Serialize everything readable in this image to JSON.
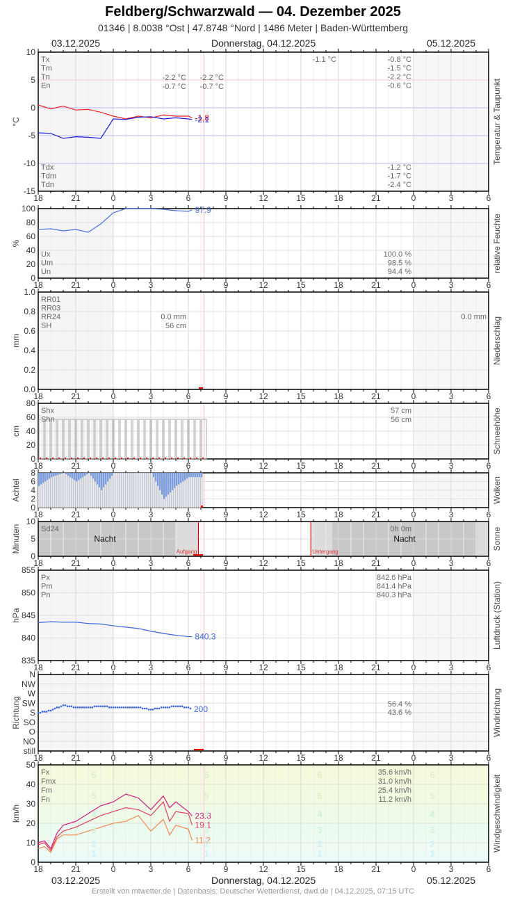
{
  "header": {
    "title": "Feldberg/Schwarzwald  —  04. Dezember 2025",
    "subtitle": "01346  |  8.0038 °Ost  |  47.8748 °Nord  |  1486 Meter  |  Baden-Württemberg",
    "date_left": "03.12.2025",
    "date_center": "Donnerstag, 04.12.2025",
    "date_right": "05.12.2025"
  },
  "footer": {
    "credit": "Erstellt von mtwetter.de | Datenbasis: Deutscher Wetterdienst, dwd.de | 04.12.2025, 07:15 UTC"
  },
  "x_axis": {
    "tick_labels": [
      "18",
      "21",
      "0",
      "3",
      "6",
      "9",
      "12",
      "15",
      "18",
      "21",
      "0",
      "3",
      "6"
    ]
  },
  "colors": {
    "temp": "#ee2222",
    "dewpoint": "#1a1ad8",
    "humidity": "#4a72e0",
    "pressure": "#3b66dd",
    "wind_dir": "#3b66dd",
    "fx": "#cc1a7a",
    "fm": "#e0405a",
    "fn": "#f08a50",
    "marker": "#ff0000",
    "night": "#c8c8c8"
  },
  "chart_data": [
    {
      "type": "line",
      "title": "Temperatur & Taupunkt",
      "ylabel": "°C",
      "ylim": [
        -15,
        10
      ],
      "yticks": [
        "10",
        "5",
        "0",
        "-5",
        "-10",
        "-15"
      ],
      "x": [
        "18",
        "19",
        "20",
        "21",
        "22",
        "23",
        "0",
        "1",
        "2",
        "3",
        "4",
        "5",
        "6",
        "6.3"
      ],
      "series": [
        {
          "name": "Temperatur",
          "values": [
            0.5,
            -0.2,
            0.3,
            -0.4,
            -0.3,
            -0.8,
            -1.5,
            -2.0,
            -1.5,
            -1.8,
            -1.3,
            -1.5,
            -1.5,
            -1.8
          ],
          "last_label": "-1.8"
        },
        {
          "name": "Taupunkt",
          "values": [
            -4.5,
            -4.6,
            -5.5,
            -5.2,
            -5.3,
            -5.5,
            -2.0,
            -2.1,
            -1.7,
            -1.6,
            -2.0,
            -1.8,
            -2.0,
            -2.1
          ],
          "last_label": "-2.1"
        }
      ],
      "legend_top": [
        "Tx",
        "Tm",
        "Tn",
        "En"
      ],
      "legend_bottom": [
        "Tdx",
        "Tdm",
        "Tdn"
      ],
      "col_a": {
        "Tn": "-2.2 °C",
        "En": "-0.7 °C"
      },
      "col_b": {
        "Tn": "-2.2 °C",
        "En": "-0.7 °C"
      },
      "col_c": {
        "Tx": "-1.1 °C"
      },
      "col_d": {
        "Tx": "-0.8 °C",
        "Tm": "-1.5 °C",
        "Tn": "-2.2 °C",
        "En": "-0.6 °C",
        "Tdx": "-1.2 °C",
        "Tdm": "-1.7 °C",
        "Tdn": "-2.4 °C"
      }
    },
    {
      "type": "line",
      "title": "relative Feuchte",
      "ylabel": "%",
      "ylim": [
        0,
        100
      ],
      "yticks": [
        "100",
        "80",
        "60",
        "40",
        "20",
        "0"
      ],
      "x": [
        "18",
        "19",
        "20",
        "21",
        "22",
        "23",
        "0",
        "1",
        "2",
        "3",
        "4",
        "5",
        "6",
        "6.3"
      ],
      "series": [
        {
          "name": "Feuchte",
          "values": [
            70,
            71,
            68,
            70,
            66,
            78,
            94,
            100,
            100,
            100,
            99,
            97,
            96,
            97.9
          ],
          "last_label": "97.9"
        }
      ],
      "legend": [
        "Ux",
        "Um",
        "Un"
      ],
      "values": {
        "Ux": "100.0 %",
        "Um": "98.5 %",
        "Un": "94.4 %"
      }
    },
    {
      "type": "bar",
      "title": "Niederschlag",
      "ylabel": "mm",
      "ylim": [
        0,
        1.0
      ],
      "yticks": [
        "1.0",
        "0.8",
        "0.6",
        "0.4",
        "0.2",
        "0.0"
      ],
      "legend": [
        "RR01",
        "RR03",
        "RR24",
        "SH"
      ],
      "values": {
        "RR24": "0.0 mm",
        "SH": "56 cm"
      },
      "right_value": "0.0 mm"
    },
    {
      "type": "bar",
      "title": "Schneehöhe",
      "ylabel": "cm",
      "ylim": [
        0,
        80
      ],
      "yticks": [
        "80",
        "60",
        "40",
        "20",
        "0"
      ],
      "bar_value": 57,
      "legend": [
        "Shx",
        "Shn"
      ],
      "values": {
        "Shx": "57 cm",
        "Shn": "56 cm"
      }
    },
    {
      "type": "bar",
      "title": "Wolken",
      "ylabel": "Achtel",
      "ylim": [
        0,
        8
      ],
      "yticks": [
        "8",
        "6",
        "4",
        "2",
        "0"
      ],
      "x": [
        "18",
        "19",
        "20",
        "21",
        "22",
        "23",
        "0",
        "1",
        "2",
        "3",
        "4",
        "5",
        "6",
        "6.5"
      ],
      "values": [
        5,
        7,
        8,
        6,
        8,
        4,
        8,
        8,
        8,
        8,
        2,
        5,
        7,
        7
      ]
    },
    {
      "type": "area",
      "title": "Sonne",
      "ylabel": "Minuten",
      "ylim": [
        0,
        10
      ],
      "yticks": [
        "10",
        "5",
        "0"
      ],
      "legend": [
        "Sd24"
      ],
      "sd24_value": "0h 0m",
      "night_label": "Nacht",
      "sunrise_label": "Aufgang",
      "sunset_label": "Untergang",
      "sunrise_hour": 6.8,
      "sunset_hour": 15.8
    },
    {
      "type": "line",
      "title": "Luftdruck (Station)",
      "ylabel": "hPa",
      "ylim": [
        835,
        855
      ],
      "yticks": [
        "855",
        "850",
        "845",
        "840",
        "835"
      ],
      "x": [
        "18",
        "19",
        "20",
        "21",
        "22",
        "23",
        "0",
        "1",
        "2",
        "3",
        "4",
        "5",
        "6",
        "6.3"
      ],
      "series": [
        {
          "name": "Luftdruck",
          "values": [
            843.4,
            843.6,
            843.5,
            843.5,
            843.2,
            843.1,
            842.7,
            842.4,
            842.1,
            841.5,
            841.0,
            840.6,
            840.3,
            840.3
          ],
          "last_label": "840.3"
        }
      ],
      "legend": [
        "Px",
        "Pm",
        "Pn"
      ],
      "values": {
        "Px": "842.6 hPa",
        "Pm": "841.4 hPa",
        "Pn": "840.3 hPa"
      }
    },
    {
      "type": "scatter",
      "title": "Windrichtung",
      "ylabel": "Richtung",
      "yticks": [
        "N",
        "NW",
        "W",
        "SW",
        "S",
        "SO",
        "O",
        "NO",
        "still"
      ],
      "x": [
        "18",
        "19",
        "20",
        "21",
        "22",
        "23",
        "0",
        "1",
        "2",
        "3",
        "4",
        "5",
        "6",
        "6.3"
      ],
      "series": [
        {
          "name": "Richtung",
          "values": [
            180,
            190,
            215,
            205,
            205,
            210,
            205,
            205,
            205,
            195,
            205,
            210,
            205,
            200
          ],
          "last_label": "200"
        }
      ],
      "values": [
        "56.4 %",
        "43.6 %"
      ]
    },
    {
      "type": "line",
      "title": "Windgeschwindigkeit",
      "ylabel": "km/h",
      "ylim": [
        0,
        50
      ],
      "yticks": [
        "50",
        "40",
        "30",
        "20",
        "10",
        "0"
      ],
      "x": [
        "18",
        "18.5",
        "19",
        "19.5",
        "20",
        "21",
        "22",
        "23",
        "0",
        "1",
        "2",
        "3",
        "4",
        "4.5",
        "5",
        "6",
        "6.3"
      ],
      "series": [
        {
          "name": "Fx",
          "values": [
            10,
            11,
            7,
            15,
            19,
            21,
            25,
            29,
            31,
            35,
            33,
            27,
            34,
            28,
            31,
            26,
            23.8
          ],
          "last_label": "23.8"
        },
        {
          "name": "Fm",
          "values": [
            9,
            10,
            6,
            13,
            16,
            18,
            21,
            24,
            26,
            28,
            27,
            24,
            31,
            21,
            26,
            25,
            19.1
          ],
          "last_label": "19.1"
        },
        {
          "name": "Fn",
          "values": [
            7,
            8,
            5,
            12,
            14,
            14,
            16,
            18,
            20,
            21,
            24,
            16,
            22,
            14,
            19,
            17,
            11.2
          ],
          "last_label": "11.2"
        }
      ],
      "legend": [
        "Fx",
        "Fmx",
        "Fm",
        "Fn"
      ],
      "values": {
        "Fx": "35.6 km/h",
        "Fmx": "31.0 km/h",
        "Fm": "25.4 km/h",
        "Fn": "11.2 km/h"
      },
      "beaufort_labels": [
        "6",
        "5",
        "4",
        "3",
        "2",
        "1"
      ]
    }
  ]
}
